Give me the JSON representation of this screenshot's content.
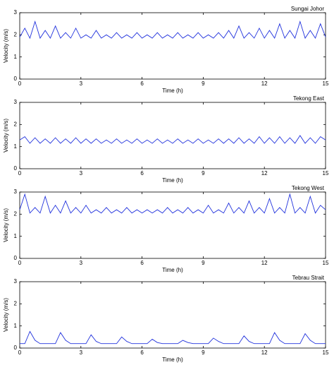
{
  "chart_data": [
    {
      "type": "line",
      "title": "Sungai Johor",
      "xlabel": "Time (h)",
      "ylabel": "Velocity (m/s)",
      "color": "#2233dd",
      "xlim": [
        0,
        15
      ],
      "ylim": [
        0,
        3
      ],
      "xticks": [
        0,
        3,
        6,
        9,
        12,
        15
      ],
      "yticks": [
        0,
        1,
        2,
        3
      ],
      "x": [
        0,
        0.25,
        0.5,
        0.75,
        1,
        1.25,
        1.5,
        1.75,
        2,
        2.25,
        2.5,
        2.75,
        3,
        3.25,
        3.5,
        3.75,
        4,
        4.25,
        4.5,
        4.75,
        5,
        5.25,
        5.5,
        5.75,
        6,
        6.25,
        6.5,
        6.75,
        7,
        7.25,
        7.5,
        7.75,
        8,
        8.25,
        8.5,
        8.75,
        9,
        9.25,
        9.5,
        9.75,
        10,
        10.25,
        10.5,
        10.75,
        11,
        11.25,
        11.5,
        11.75,
        12,
        12.25,
        12.5,
        12.75,
        13,
        13.25,
        13.5,
        13.75,
        14,
        14.25,
        14.5,
        14.75,
        15
      ],
      "values": [
        1.9,
        2.3,
        1.85,
        2.6,
        1.85,
        2.2,
        1.85,
        2.4,
        1.85,
        2.1,
        1.85,
        2.3,
        1.85,
        2.0,
        1.85,
        2.2,
        1.85,
        2.0,
        1.85,
        2.1,
        1.85,
        2.0,
        1.85,
        2.1,
        1.85,
        2.0,
        1.85,
        2.1,
        1.85,
        2.0,
        1.85,
        2.1,
        1.85,
        2.0,
        1.85,
        2.1,
        1.85,
        2.0,
        1.85,
        2.1,
        1.85,
        2.2,
        1.85,
        2.4,
        1.85,
        2.1,
        1.85,
        2.3,
        1.85,
        2.2,
        1.85,
        2.5,
        1.85,
        2.2,
        1.85,
        2.6,
        1.85,
        2.2,
        1.85,
        2.5,
        1.9
      ]
    },
    {
      "type": "line",
      "title": "Tekong East",
      "xlabel": "Time (h)",
      "ylabel": "Velocity (m/s)",
      "color": "#2233dd",
      "xlim": [
        0,
        15
      ],
      "ylim": [
        0,
        3
      ],
      "xticks": [
        0,
        3,
        6,
        9,
        12,
        15
      ],
      "yticks": [
        0,
        1,
        2,
        3
      ],
      "x": [
        0,
        0.25,
        0.5,
        0.75,
        1,
        1.25,
        1.5,
        1.75,
        2,
        2.25,
        2.5,
        2.75,
        3,
        3.25,
        3.5,
        3.75,
        4,
        4.25,
        4.5,
        4.75,
        5,
        5.25,
        5.5,
        5.75,
        6,
        6.25,
        6.5,
        6.75,
        7,
        7.25,
        7.5,
        7.75,
        8,
        8.25,
        8.5,
        8.75,
        9,
        9.25,
        9.5,
        9.75,
        10,
        10.25,
        10.5,
        10.75,
        11,
        11.25,
        11.5,
        11.75,
        12,
        12.25,
        12.5,
        12.75,
        13,
        13.25,
        13.5,
        13.75,
        14,
        14.25,
        14.5,
        14.75,
        15
      ],
      "values": [
        1.3,
        1.45,
        1.15,
        1.4,
        1.15,
        1.35,
        1.15,
        1.4,
        1.15,
        1.35,
        1.15,
        1.4,
        1.15,
        1.35,
        1.15,
        1.35,
        1.15,
        1.3,
        1.15,
        1.35,
        1.15,
        1.3,
        1.15,
        1.35,
        1.15,
        1.3,
        1.15,
        1.35,
        1.15,
        1.3,
        1.15,
        1.35,
        1.15,
        1.3,
        1.15,
        1.35,
        1.15,
        1.3,
        1.15,
        1.35,
        1.15,
        1.35,
        1.15,
        1.4,
        1.15,
        1.35,
        1.15,
        1.45,
        1.15,
        1.4,
        1.15,
        1.45,
        1.15,
        1.4,
        1.15,
        1.5,
        1.15,
        1.4,
        1.15,
        1.45,
        1.3
      ]
    },
    {
      "type": "line",
      "title": "Tekong West",
      "xlabel": "Time (h)",
      "ylabel": "Velocity (m/s)",
      "color": "#2233dd",
      "xlim": [
        0,
        15
      ],
      "ylim": [
        0,
        3
      ],
      "xticks": [
        0,
        3,
        6,
        9,
        12,
        15
      ],
      "yticks": [
        0,
        1,
        2,
        3
      ],
      "x": [
        0,
        0.25,
        0.5,
        0.75,
        1,
        1.25,
        1.5,
        1.75,
        2,
        2.25,
        2.5,
        2.75,
        3,
        3.25,
        3.5,
        3.75,
        4,
        4.25,
        4.5,
        4.75,
        5,
        5.25,
        5.5,
        5.75,
        6,
        6.25,
        6.5,
        6.75,
        7,
        7.25,
        7.5,
        7.75,
        8,
        8.25,
        8.5,
        8.75,
        9,
        9.25,
        9.5,
        9.75,
        10,
        10.25,
        10.5,
        10.75,
        11,
        11.25,
        11.5,
        11.75,
        12,
        12.25,
        12.5,
        12.75,
        13,
        13.25,
        13.5,
        13.75,
        14,
        14.25,
        14.5,
        14.75,
        15
      ],
      "values": [
        2.2,
        2.9,
        2.05,
        2.3,
        2.05,
        2.8,
        2.05,
        2.4,
        2.05,
        2.6,
        2.05,
        2.3,
        2.05,
        2.4,
        2.05,
        2.2,
        2.05,
        2.3,
        2.05,
        2.2,
        2.05,
        2.3,
        2.05,
        2.2,
        2.05,
        2.2,
        2.05,
        2.2,
        2.05,
        2.3,
        2.05,
        2.2,
        2.05,
        2.3,
        2.05,
        2.2,
        2.05,
        2.4,
        2.05,
        2.2,
        2.05,
        2.5,
        2.05,
        2.3,
        2.05,
        2.6,
        2.05,
        2.3,
        2.05,
        2.7,
        2.05,
        2.3,
        2.05,
        2.9,
        2.05,
        2.3,
        2.05,
        2.8,
        2.05,
        2.4,
        2.2
      ]
    },
    {
      "type": "line",
      "title": "Tebrau Strait",
      "xlabel": "Time (h)",
      "ylabel": "Velocity (m/s)",
      "color": "#2233dd",
      "xlim": [
        0,
        15
      ],
      "ylim": [
        0,
        3
      ],
      "xticks": [
        0,
        3,
        6,
        9,
        12,
        15
      ],
      "yticks": [
        0,
        1,
        2,
        3
      ],
      "x": [
        0,
        0.25,
        0.5,
        0.75,
        1,
        1.25,
        1.5,
        1.75,
        2,
        2.25,
        2.5,
        2.75,
        3,
        3.25,
        3.5,
        3.75,
        4,
        4.25,
        4.5,
        4.75,
        5,
        5.25,
        5.5,
        5.75,
        6,
        6.25,
        6.5,
        6.75,
        7,
        7.25,
        7.5,
        7.75,
        8,
        8.25,
        8.5,
        8.75,
        9,
        9.25,
        9.5,
        9.75,
        10,
        10.25,
        10.5,
        10.75,
        11,
        11.25,
        11.5,
        11.75,
        12,
        12.25,
        12.5,
        12.75,
        13,
        13.25,
        13.5,
        13.75,
        14,
        14.25,
        14.5,
        14.75,
        15
      ],
      "values": [
        0.2,
        0.2,
        0.75,
        0.35,
        0.2,
        0.2,
        0.2,
        0.2,
        0.7,
        0.35,
        0.2,
        0.2,
        0.2,
        0.2,
        0.6,
        0.3,
        0.2,
        0.2,
        0.2,
        0.2,
        0.5,
        0.3,
        0.2,
        0.2,
        0.2,
        0.2,
        0.4,
        0.25,
        0.2,
        0.2,
        0.2,
        0.2,
        0.35,
        0.25,
        0.2,
        0.2,
        0.2,
        0.2,
        0.45,
        0.3,
        0.2,
        0.2,
        0.2,
        0.2,
        0.55,
        0.3,
        0.2,
        0.2,
        0.2,
        0.2,
        0.7,
        0.35,
        0.2,
        0.2,
        0.2,
        0.2,
        0.65,
        0.35,
        0.2,
        0.2,
        0.2
      ]
    }
  ]
}
